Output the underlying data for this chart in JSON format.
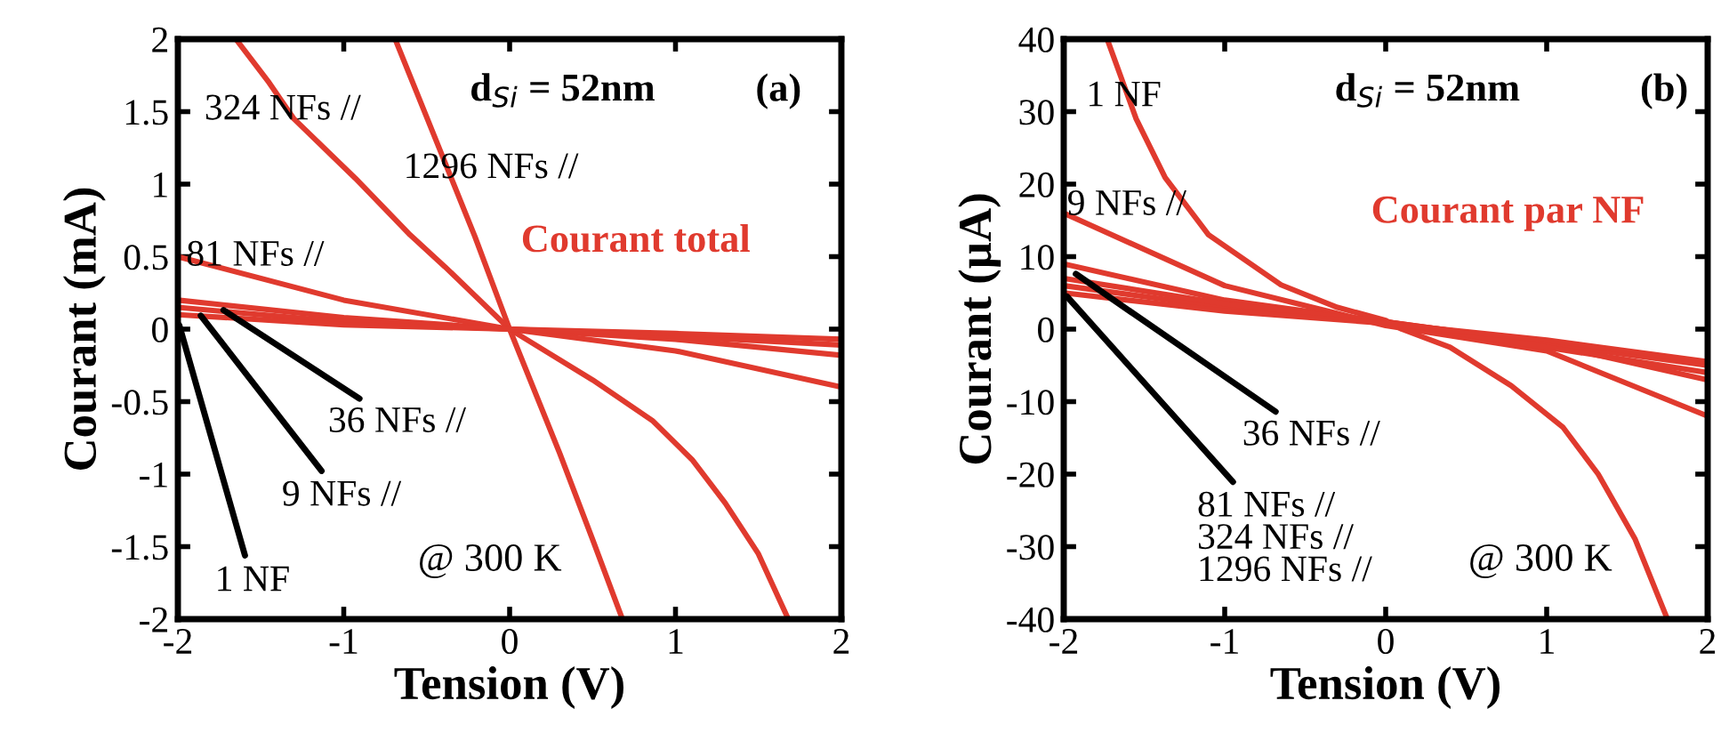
{
  "chart_data": [
    {
      "type": "line",
      "xlabel": "Tension (V)",
      "ylabel": "Courant (mA)",
      "xlim": [
        -2,
        2
      ],
      "ylim": [
        -2,
        2
      ],
      "xticks": [
        -2,
        -1,
        0,
        1,
        2
      ],
      "yticks": [
        -2,
        -1.5,
        -1,
        -0.5,
        0,
        0.5,
        1,
        1.5,
        2
      ],
      "grid": false,
      "legend": false,
      "marker": "none",
      "line_style": "solid",
      "series": [
        {
          "color": "#e03a2e",
          "x": [
            -0.69,
            -0.57,
            -0.21,
            0,
            0.3,
            0.5,
            0.68
          ],
          "values": [
            2,
            1.66,
            0.64,
            0,
            -0.85,
            -1.45,
            -2
          ]
        },
        {
          "color": "#e03a2e",
          "x": [
            -1.65,
            -1.45,
            -1.3,
            -0.93,
            -0.6,
            -0.39,
            0,
            0.5,
            0.86,
            1.1,
            1.3,
            1.5,
            1.68
          ],
          "values": [
            2,
            1.7,
            1.45,
            1.04,
            0.65,
            0.43,
            0,
            -0.35,
            -0.63,
            -0.9,
            -1.2,
            -1.55,
            -2
          ]
        },
        {
          "color": "#e03a2e",
          "x": [
            -2,
            -1,
            0,
            1,
            2
          ],
          "values": [
            0.5,
            0.2,
            0,
            -0.15,
            -0.4
          ]
        },
        {
          "color": "#e03a2e",
          "x": [
            -2,
            -1,
            0,
            1,
            2
          ],
          "values": [
            0.2,
            0.08,
            0,
            -0.07,
            -0.18
          ]
        },
        {
          "color": "#e03a2e",
          "x": [
            -2,
            -1,
            0,
            1,
            2
          ],
          "values": [
            0.15,
            0.05,
            0,
            -0.05,
            -0.11
          ]
        },
        {
          "color": "#e03a2e",
          "x": [
            -2,
            -1,
            0,
            1,
            2
          ],
          "values": [
            0.1,
            0.03,
            0,
            -0.03,
            -0.07
          ]
        }
      ],
      "annotations": [
        "324 NFs //",
        "1296 NFs //",
        {
          "text": "81 NFs //",
          "x": -1.95,
          "y": 0.5
        },
        {
          "text": "36 NFs //",
          "x": -1.75,
          "y": 0.15
        },
        {
          "text": "9 NFs //",
          "x": -1.88,
          "y": 0.12
        },
        {
          "text": "1 NF",
          "x": -2,
          "y": 0.06
        },
        "d$_{Si}$ = 52nm",
        "(a)",
        "Courant total",
        "@ 300 K"
      ]
    },
    {
      "type": "line",
      "xlabel": "Tension (V)",
      "ylabel": "Courant (µA)",
      "xlim": [
        -2,
        2
      ],
      "ylim": [
        -40,
        40
      ],
      "xticks": [
        -2,
        -1,
        0,
        1,
        2
      ],
      "yticks": [
        -40,
        -30,
        -20,
        -10,
        0,
        10,
        20,
        30,
        40
      ],
      "grid": false,
      "legend": false,
      "marker": "none",
      "line_style": "solid",
      "series": [
        {
          "color": "#e03a2e",
          "x": [
            -1.73,
            -1.55,
            -1.37,
            -1.1,
            -0.65,
            -0.3,
            0,
            0.1,
            0.4,
            0.78,
            1.1,
            1.32,
            1.55,
            1.75
          ],
          "values": [
            40,
            29,
            20.9,
            13,
            6.1,
            3,
            1.2,
            0,
            -2.5,
            -7.8,
            -13.5,
            -20,
            -29,
            -40
          ]
        },
        {
          "color": "#e03a2e",
          "x": [
            -2,
            -1,
            0,
            1,
            2
          ],
          "values": [
            16,
            6,
            0.5,
            -3,
            -12
          ]
        },
        {
          "color": "#e03a2e",
          "x": [
            -2,
            -1,
            0,
            1,
            2
          ],
          "values": [
            9,
            4,
            1,
            -2,
            -7
          ]
        },
        {
          "color": "#e03a2e",
          "x": [
            -2,
            -1,
            0,
            1,
            2
          ],
          "values": [
            6,
            3,
            1,
            -2,
            -5
          ]
        },
        {
          "color": "#e03a2e",
          "x": [
            -2,
            -1,
            0,
            1,
            2
          ],
          "values": [
            7,
            3.5,
            1,
            -2.5,
            -6
          ]
        },
        {
          "color": "#e03a2e",
          "x": [
            -2,
            -1,
            0,
            1,
            2
          ],
          "values": [
            5,
            2.5,
            0.8,
            -1.5,
            -4.5
          ]
        }
      ],
      "annotations": [
        "1 NF",
        {
          "text": "9 NFs //",
          "x": -1.98,
          "y": 17
        },
        {
          "text": "36 NFs //",
          "x": -1.95,
          "y": 8
        },
        {
          "text": "81 NFs //\n324 NFs //\n1296 NFs //",
          "x": -2,
          "y": 5
        },
        "d$_{Si}$ = 52nm",
        "(b)",
        "Courant par NF",
        "@ 300 K"
      ]
    }
  ]
}
